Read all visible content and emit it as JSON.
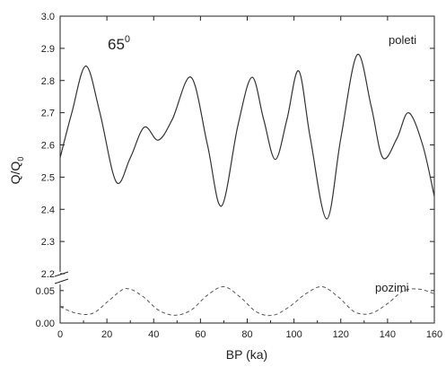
{
  "chart_data": {
    "type": "line",
    "xlabel": "BP (ka)",
    "ylabel": "Q/Q",
    "ylabel_sub": "0",
    "x_ticks": [
      "0",
      "20",
      "40",
      "60",
      "80",
      "100",
      "120",
      "140",
      "160"
    ],
    "upper_y_ticks": [
      "2.2",
      "2.3",
      "2.4",
      "2.5",
      "2.6",
      "2.7",
      "2.8",
      "2.9",
      "3.0"
    ],
    "lower_y_ticks": [
      "0.00",
      "0.025",
      "0.05"
    ],
    "lower_y_tick_labels": [
      "0.00",
      "",
      "0.05"
    ],
    "xlim": [
      0,
      160
    ],
    "upper_ylim": [
      2.2,
      3.0
    ],
    "lower_ylim": [
      0.0,
      0.065
    ],
    "axis_break": true,
    "grid": false,
    "annotations": {
      "latitude_value": "65",
      "latitude_sup": "0",
      "summer_label": "poleti",
      "winter_label": "pozimi"
    },
    "series": [
      {
        "name": "poleti",
        "panel": "upper",
        "style": "solid",
        "color": "#333333",
        "x": [
          0,
          5,
          11,
          17,
          24,
          30,
          36,
          42,
          48,
          56,
          63,
          69,
          76,
          82,
          87,
          92,
          97,
          102,
          107,
          114,
          120,
          127,
          133,
          138,
          144,
          149,
          155,
          160
        ],
        "y": [
          2.56,
          2.7,
          2.845,
          2.7,
          2.485,
          2.56,
          2.655,
          2.615,
          2.68,
          2.81,
          2.6,
          2.41,
          2.66,
          2.81,
          2.68,
          2.555,
          2.68,
          2.83,
          2.62,
          2.37,
          2.62,
          2.88,
          2.72,
          2.56,
          2.62,
          2.7,
          2.6,
          2.44
        ]
      },
      {
        "name": "pozimi",
        "panel": "lower",
        "style": "dashed",
        "color": "#555555",
        "x": [
          0,
          7,
          14,
          21,
          28,
          35,
          42,
          49,
          56,
          63,
          70,
          77,
          84,
          91,
          98,
          105,
          112,
          119,
          126,
          133,
          140,
          147,
          154,
          160
        ],
        "y": [
          0.025,
          0.015,
          0.015,
          0.035,
          0.053,
          0.042,
          0.02,
          0.012,
          0.02,
          0.043,
          0.056,
          0.04,
          0.017,
          0.012,
          0.025,
          0.045,
          0.056,
          0.04,
          0.017,
          0.015,
          0.03,
          0.05,
          0.052,
          0.045
        ]
      }
    ]
  }
}
